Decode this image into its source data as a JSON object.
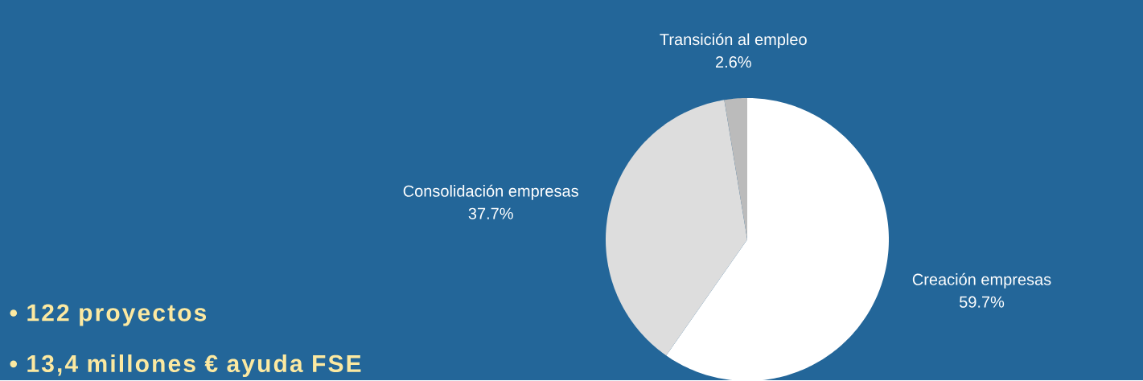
{
  "chart_data": {
    "type": "pie",
    "categories": [
      "Creación empresas",
      "Consolidación empresas",
      "Transición al empleo"
    ],
    "values": [
      59.7,
      37.7,
      2.6
    ],
    "colors": [
      "#ffffff",
      "#dddddd",
      "#bbbbbb"
    ],
    "value_labels": [
      "59.7%",
      "37.7%",
      "2.6%"
    ],
    "annotations": [
      "• 122 proyectos",
      "• 13,4  millones € ayuda FSE"
    ]
  }
}
